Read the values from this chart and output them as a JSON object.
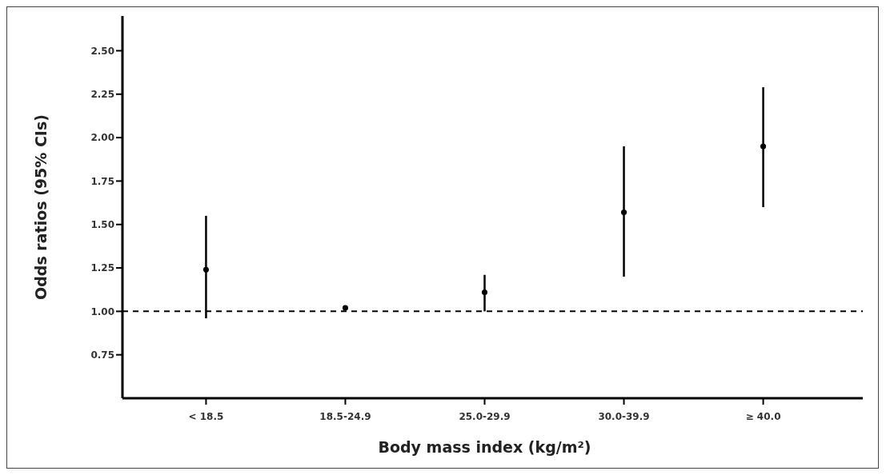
{
  "chart_data": {
    "type": "scatter",
    "xlabel": "Body mass index (kg/m²)",
    "ylabel": "Odds ratios (95% CIs)",
    "categories": [
      "< 18.5",
      "18.5-24.9",
      "25.0-29.9",
      "30.0-39.9",
      "≥ 40.0"
    ],
    "series": [
      {
        "color": "#000000",
        "values": [
          1.24,
          1.02,
          1.11,
          1.57,
          1.95
        ],
        "errors": [
          [
            0.96,
            1.55
          ],
          null,
          [
            1.0,
            1.21
          ],
          [
            1.2,
            1.95
          ],
          [
            1.6,
            2.29
          ]
        ]
      }
    ],
    "ylim": [
      0.5,
      2.7
    ],
    "yticks": [
      {
        "value": 0.75,
        "label": "0.75"
      },
      {
        "value": 1,
        "label": "1.00"
      },
      {
        "value": 1.25,
        "label": "1.25"
      },
      {
        "value": 1.5,
        "label": "1.50"
      },
      {
        "value": 1.75,
        "label": "1.75"
      },
      {
        "value": 2,
        "label": "2.00"
      },
      {
        "value": 2.25,
        "label": "2.25"
      },
      {
        "value": 2.5,
        "label": "2.50"
      }
    ],
    "ref_lines": [
      {
        "axis": "y",
        "value": 1,
        "line_style": "dashed",
        "color": "#000000"
      }
    ],
    "marker": "circle"
  }
}
